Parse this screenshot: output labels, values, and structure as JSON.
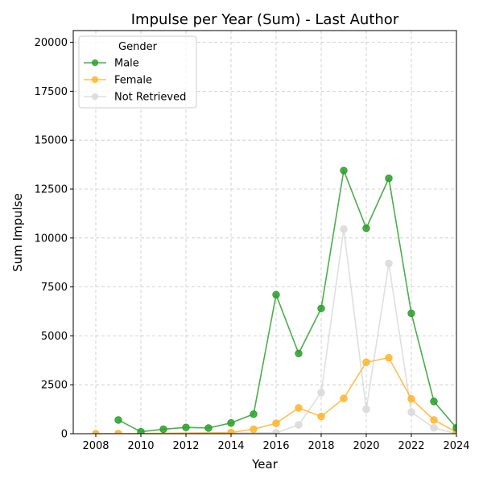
{
  "chart_data": {
    "type": "line",
    "title": "Impulse per Year (Sum) - Last Author",
    "xlabel": "Year",
    "ylabel": "Sum Impulse",
    "xlim": [
      2007,
      2024
    ],
    "ylim": [
      0,
      20600
    ],
    "xticks": [
      2008,
      2010,
      2012,
      2014,
      2016,
      2018,
      2020,
      2022,
      2024
    ],
    "yticks": [
      0,
      2500,
      5000,
      7500,
      10000,
      12500,
      15000,
      17500,
      20000
    ],
    "grid": true,
    "legend": {
      "title": "Gender",
      "position": "top-left"
    },
    "series": [
      {
        "name": "Male",
        "color": "#2ca02c",
        "x": [
          2009,
          2010,
          2011,
          2012,
          2013,
          2014,
          2015,
          2016,
          2017,
          2018,
          2019,
          2020,
          2021,
          2022,
          2023,
          2024
        ],
        "y": [
          700,
          100,
          230,
          320,
          290,
          550,
          1000,
          7100,
          4100,
          6400,
          13450,
          10500,
          13050,
          6150,
          1650,
          300
        ]
      },
      {
        "name": "Female",
        "color": "#ffb52e",
        "x": [
          2008,
          2009,
          2014,
          2015,
          2016,
          2017,
          2018,
          2019,
          2020,
          2021,
          2022,
          2023,
          2024
        ],
        "y": [
          0,
          0,
          60,
          230,
          530,
          1320,
          880,
          1800,
          3650,
          3880,
          1780,
          700,
          80
        ]
      },
      {
        "name": "Not Retrieved",
        "color": "#d9d9d9",
        "x": [
          2008,
          2009,
          2016,
          2017,
          2018,
          2019,
          2020,
          2021,
          2022,
          2023,
          2024
        ],
        "y": [
          0,
          0,
          50,
          450,
          2100,
          10450,
          1250,
          8700,
          1100,
          300,
          0
        ]
      }
    ]
  }
}
